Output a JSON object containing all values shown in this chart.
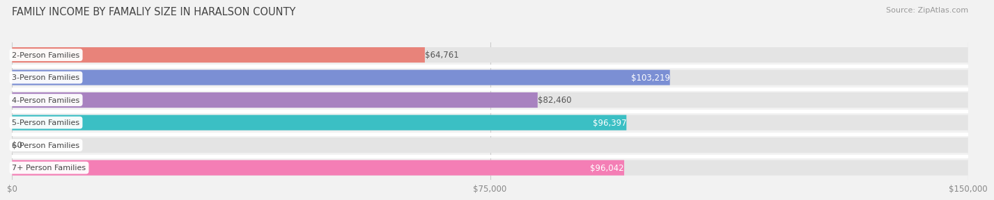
{
  "title": "FAMILY INCOME BY FAMALIY SIZE IN HARALSON COUNTY",
  "source": "Source: ZipAtlas.com",
  "categories": [
    "2-Person Families",
    "3-Person Families",
    "4-Person Families",
    "5-Person Families",
    "6-Person Families",
    "7+ Person Families"
  ],
  "values": [
    64761,
    103219,
    82460,
    96397,
    0,
    96042
  ],
  "bar_colors": [
    "#E8837A",
    "#7B8FD4",
    "#A882C0",
    "#3BBFC4",
    "#B0B8E8",
    "#F47EB5"
  ],
  "value_label_inside": [
    false,
    true,
    false,
    true,
    false,
    true
  ],
  "xmax": 150000,
  "xtick_labels": [
    "$0",
    "$75,000",
    "$150,000"
  ],
  "xtick_values": [
    0,
    75000,
    150000
  ],
  "background_color": "#f2f2f2",
  "bar_bg_color": "#e4e4e4",
  "title_fontsize": 10.5,
  "source_fontsize": 8,
  "bar_height": 0.68,
  "label_fontsize": 8.5,
  "category_fontsize": 8.0,
  "bar_gap": 0.32
}
